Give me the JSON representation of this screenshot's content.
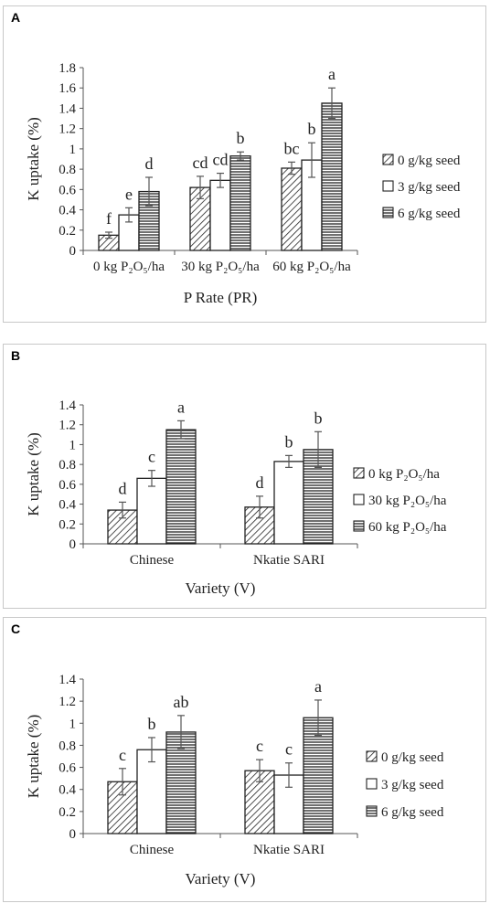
{
  "chart_data": [
    {
      "panel": "A",
      "type": "bar",
      "categories": [
        "0 kg P₂O₅/ha",
        "30 kg P₂O₅/ha",
        "60 kg P₂O₅/ha"
      ],
      "xlabel": "P Rate (PR)",
      "ylabel": "K uptake (%)",
      "ylim": [
        0,
        1.8
      ],
      "yticks": [
        "0",
        "0.2",
        "0.4",
        "0.6",
        "0.8",
        "1",
        "1.2",
        "1.4",
        "1.6",
        "1.8"
      ],
      "series": [
        {
          "name": "0 g/kg seed",
          "pattern": "diagonal",
          "values": [
            0.15,
            0.62,
            0.81
          ],
          "errors": [
            0.03,
            0.11,
            0.06
          ],
          "letters": [
            "f",
            "cd",
            "bc"
          ]
        },
        {
          "name": "3 g/kg seed",
          "pattern": "white",
          "values": [
            0.35,
            0.69,
            0.89
          ],
          "errors": [
            0.07,
            0.07,
            0.17
          ],
          "letters": [
            "e",
            "cd",
            "b"
          ]
        },
        {
          "name": "6 g/kg seed",
          "pattern": "horizontal",
          "values": [
            0.58,
            0.93,
            1.45
          ],
          "errors": [
            0.14,
            0.04,
            0.15
          ],
          "letters": [
            "d",
            "b",
            "a"
          ]
        }
      ],
      "legend_position": "right",
      "grid": false
    },
    {
      "panel": "B",
      "type": "bar",
      "categories": [
        "Chinese",
        "Nkatie SARI"
      ],
      "xlabel": "Variety (V)",
      "ylabel": "K uptake (%)",
      "ylim": [
        0,
        1.4
      ],
      "yticks": [
        "0",
        "0.2",
        "0.4",
        "0.6",
        "0.8",
        "1",
        "1.2",
        "1.4"
      ],
      "series": [
        {
          "name": "0 kg P₂O₅/ha",
          "pattern": "diagonal",
          "values": [
            0.34,
            0.37
          ],
          "errors": [
            0.08,
            0.11
          ],
          "letters": [
            "d",
            "d"
          ]
        },
        {
          "name": "30 kg P₂O₅/ha",
          "pattern": "white",
          "values": [
            0.66,
            0.83
          ],
          "errors": [
            0.08,
            0.06
          ],
          "letters": [
            "c",
            "b"
          ]
        },
        {
          "name": "60 kg P₂O₅/ha",
          "pattern": "horizontal",
          "values": [
            1.15,
            0.95
          ],
          "errors": [
            0.09,
            0.18
          ],
          "letters": [
            "a",
            "b"
          ]
        }
      ],
      "legend_position": "right",
      "grid": false
    },
    {
      "panel": "C",
      "type": "bar",
      "categories": [
        "Chinese",
        "Nkatie SARI"
      ],
      "xlabel": "Variety (V)",
      "ylabel": "K uptake (%)",
      "ylim": [
        0,
        1.4
      ],
      "yticks": [
        "0",
        "0.2",
        "0.4",
        "0.6",
        "0.8",
        "1",
        "1.2",
        "1.4"
      ],
      "series": [
        {
          "name": "0 g/kg seed",
          "pattern": "diagonal",
          "values": [
            0.47,
            0.57
          ],
          "errors": [
            0.12,
            0.1
          ],
          "letters": [
            "c",
            "c"
          ]
        },
        {
          "name": "3 g/kg seed",
          "pattern": "white",
          "values": [
            0.76,
            0.53
          ],
          "errors": [
            0.11,
            0.11
          ],
          "letters": [
            "b",
            "c"
          ]
        },
        {
          "name": "6 g/kg seed",
          "pattern": "horizontal",
          "values": [
            0.92,
            1.05
          ],
          "errors": [
            0.15,
            0.16
          ],
          "letters": [
            "ab",
            "a"
          ]
        }
      ],
      "legend_position": "right",
      "grid": false
    }
  ]
}
